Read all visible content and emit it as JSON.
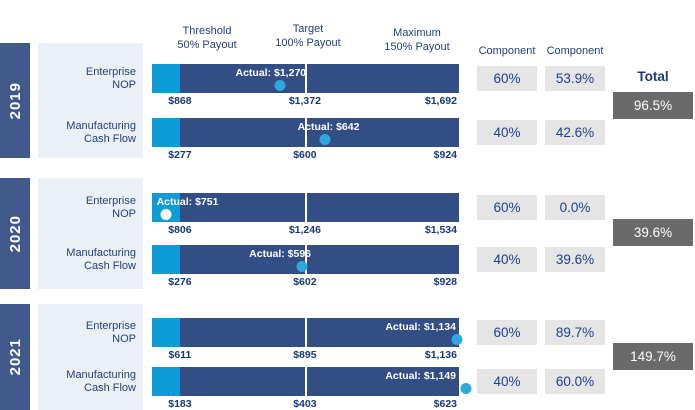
{
  "colors": {
    "bar_navy": "#334E85",
    "year_band_navy": "#41588B",
    "cyan": "#0E9CD9",
    "dot_cyan": "#2EA8DF",
    "dot_white": "#FFFFFF",
    "panel": "#EBEFF6",
    "component_box": "#E5E5E5",
    "total_box_gray": "#6A6A6A",
    "text_navy": "#25407B"
  },
  "header": {
    "threshold": {
      "line1": "Threshold",
      "line2": "50% Payout"
    },
    "target": {
      "line1": "Target",
      "line2": "100% Payout"
    },
    "maximum": {
      "line1": "Maximum",
      "line2": "150% Payout"
    },
    "component_1": "Component",
    "component_2": "Component",
    "total": "Total"
  },
  "sections": [
    {
      "year": "2019",
      "total": "96.5%",
      "rows": [
        {
          "label1": "Enterprise",
          "label2": "NOP",
          "threshold": "$868",
          "target": "$1,372",
          "maximum": "$1,692",
          "actual_label": "Actual: $1,270",
          "weight": "60%",
          "payout": "53.9%",
          "dot": {
            "pct": 41.6,
            "color": "#2EA8DF"
          },
          "actual_pos": {
            "anchor": "right",
            "pct": 50.2
          }
        },
        {
          "label1": "Manufacturing",
          "label2": "Cash Flow",
          "threshold": "$277",
          "target": "$600",
          "maximum": "$924",
          "actual_label": "Actual: $642",
          "weight": "40%",
          "payout": "42.6%",
          "dot": {
            "pct": 56.5,
            "color": "#2EA8DF"
          },
          "actual_pos": {
            "anchor": "center",
            "pct": 57.5
          }
        }
      ]
    },
    {
      "year": "2020",
      "total": "39.6%",
      "rows": [
        {
          "label1": "Enterprise",
          "label2": "NOP",
          "threshold": "$806",
          "target": "$1,246",
          "maximum": "$1,534",
          "actual_label": "Actual: $751",
          "weight": "60%",
          "payout": "0.0%",
          "dot": {
            "pct": 4.5,
            "color": "#FFFFFF"
          },
          "actual_pos": {
            "anchor": "left",
            "pct": 1.5
          }
        },
        {
          "label1": "Manufacturing",
          "label2": "Cash Flow",
          "threshold": "$276",
          "target": "$602",
          "maximum": "$928",
          "actual_label": "Actual: $596",
          "weight": "40%",
          "payout": "39.6%",
          "dot": {
            "pct": 49.0,
            "color": "#2EA8DF"
          },
          "actual_pos": {
            "anchor": "right",
            "pct": 51.8
          }
        }
      ]
    },
    {
      "year": "2021",
      "total": "149.7%",
      "rows": [
        {
          "label1": "Enterprise",
          "label2": "NOP",
          "threshold": "$611",
          "target": "$895",
          "maximum": "$1,136",
          "actual_label": "Actual: $1,134",
          "weight": "60%",
          "payout": "89.7%",
          "dot": {
            "pct": 99.3,
            "color": "#2EA8DF"
          },
          "actual_pos": {
            "anchor": "right",
            "pct": 99.0
          }
        },
        {
          "label1": "Manufacturing",
          "label2": "Cash Flow",
          "threshold": "$183",
          "target": "$403",
          "maximum": "$623",
          "actual_label": "Actual: $1,149",
          "weight": "40%",
          "payout": "60.0%",
          "dot": {
            "pct": 102.4,
            "color": "#2EA8DF"
          },
          "actual_pos": {
            "anchor": "right",
            "pct": 99.0
          }
        }
      ]
    }
  ],
  "chart_data": {
    "type": "bullet",
    "title": "",
    "scale_markers": [
      "Threshold 50% Payout",
      "Target 100% Payout",
      "Maximum 150% Payout"
    ],
    "legend_position": "top",
    "groups": [
      {
        "year": "2019",
        "total_payout_pct": 96.5,
        "metrics": [
          {
            "name": "Enterprise NOP",
            "threshold": 868,
            "target": 1372,
            "maximum": 1692,
            "actual": 1270,
            "weight_pct": 60,
            "payout_pct": 53.9
          },
          {
            "name": "Manufacturing Cash Flow",
            "threshold": 277,
            "target": 600,
            "maximum": 924,
            "actual": 642,
            "weight_pct": 40,
            "payout_pct": 42.6
          }
        ]
      },
      {
        "year": "2020",
        "total_payout_pct": 39.6,
        "metrics": [
          {
            "name": "Enterprise NOP",
            "threshold": 806,
            "target": 1246,
            "maximum": 1534,
            "actual": 751,
            "weight_pct": 60,
            "payout_pct": 0.0
          },
          {
            "name": "Manufacturing Cash Flow",
            "threshold": 276,
            "target": 602,
            "maximum": 928,
            "actual": 596,
            "weight_pct": 40,
            "payout_pct": 39.6
          }
        ]
      },
      {
        "year": "2021",
        "total_payout_pct": 149.7,
        "metrics": [
          {
            "name": "Enterprise NOP",
            "threshold": 611,
            "target": 895,
            "maximum": 1136,
            "actual": 1134,
            "weight_pct": 60,
            "payout_pct": 89.7
          },
          {
            "name": "Manufacturing Cash Flow",
            "threshold": 183,
            "target": 403,
            "maximum": 623,
            "actual": 1149,
            "weight_pct": 40,
            "payout_pct": 60.0
          }
        ]
      }
    ]
  }
}
